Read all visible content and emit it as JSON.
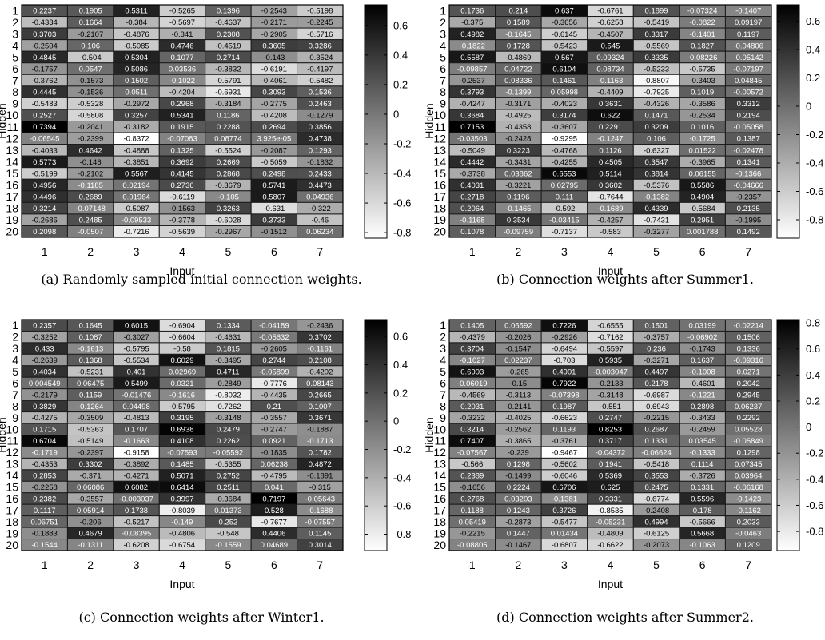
{
  "figure": {
    "x_axis_label": "Input",
    "y_axis_label": "Hidden"
  },
  "chart_data": [
    {
      "type": "heatmap",
      "caption": "(a) Randomly sampled initial connection weights.",
      "xlabel": "Input",
      "ylabel": "Hidden",
      "x_ticks": [
        "1",
        "2",
        "3",
        "4",
        "5",
        "6",
        "7"
      ],
      "y_ticks": [
        "1",
        "2",
        "3",
        "4",
        "5",
        "6",
        "7",
        "8",
        "9",
        "10",
        "11",
        "12",
        "13",
        "14",
        "15",
        "16",
        "17",
        "18",
        "19",
        "20"
      ],
      "clim": [
        -0.8372,
        0.7394
      ],
      "colorbar_ticks": [
        "0.6",
        "0.4",
        "0.2",
        "0",
        "-0.2",
        "-0.4",
        "-0.6",
        "-0.8"
      ],
      "colorbar_tick_values": [
        0.6,
        0.4,
        0.2,
        0,
        -0.2,
        -0.4,
        -0.6,
        -0.8
      ],
      "colormap": "gray, white = low, black = high",
      "cells": [
        [
          "0.2237",
          "0.1905",
          "0.5311",
          "-0.5265",
          "0.1396",
          "-0.2543",
          "-0.5198"
        ],
        [
          "-0.4334",
          "0.1664",
          "-0.384",
          "-0.5697",
          "-0.4637",
          "-0.2171",
          "-0.2245"
        ],
        [
          "0.3703",
          "-0.2107",
          "-0.4876",
          "-0.341",
          "0.2308",
          "-0.2905",
          "-0.5716"
        ],
        [
          "-0.2504",
          "0.106",
          "-0.5085",
          "0.4746",
          "-0.4519",
          "0.3605",
          "0.3286"
        ],
        [
          "0.4845",
          "-0.504",
          "0.5304",
          "0.1077",
          "0.2714",
          "-0.143",
          "-0.3524"
        ],
        [
          "-0.1757",
          "0.0547",
          "0.5086",
          "0.03536",
          "-0.3832",
          "-0.6191",
          "-0.4197"
        ],
        [
          "-0.3762",
          "-0.1573",
          "0.1502",
          "-0.1022",
          "-0.5791",
          "-0.4061",
          "-0.5482"
        ],
        [
          "0.4445",
          "-0.1536",
          "0.0511",
          "-0.4204",
          "-0.6931",
          "0.3093",
          "0.1536"
        ],
        [
          "-0.5483",
          "-0.5328",
          "-0.2972",
          "0.2968",
          "-0.3184",
          "-0.2775",
          "0.2463"
        ],
        [
          "0.2527",
          "-0.5808",
          "0.3257",
          "0.5341",
          "0.1186",
          "-0.4208",
          "-0.1279"
        ],
        [
          "0.7394",
          "-0.2041",
          "-0.3182",
          "0.1915",
          "0.2288",
          "0.2694",
          "0.3856"
        ],
        [
          "-0.06545",
          "-0.2399",
          "-0.8372",
          "-0.07083",
          "0.08774",
          "3.925e-05",
          "0.4738"
        ],
        [
          "-0.4033",
          "0.4642",
          "-0.4888",
          "0.1325",
          "-0.5524",
          "-0.2087",
          "0.1293"
        ],
        [
          "0.5773",
          "-0.146",
          "-0.3851",
          "0.3692",
          "0.2669",
          "-0.5059",
          "-0.1832"
        ],
        [
          "-0.5199",
          "-0.2102",
          "0.5567",
          "0.4145",
          "0.2868",
          "0.2498",
          "0.2433"
        ],
        [
          "0.4956",
          "-0.1185",
          "0.02194",
          "0.2736",
          "-0.3679",
          "0.5741",
          "0.4473"
        ],
        [
          "0.4496",
          "0.2689",
          "0.01964",
          "-0.6119",
          "-0.105",
          "0.5807",
          "0.04936"
        ],
        [
          "0.3214",
          "-0.07148",
          "-0.5087",
          "-0.1563",
          "0.3263",
          "-0.631",
          "-0.322"
        ],
        [
          "-0.2686",
          "0.2485",
          "-0.09533",
          "-0.3778",
          "-0.6028",
          "0.3733",
          "-0.46"
        ],
        [
          "0.2098",
          "-0.0507",
          "-0.7216",
          "-0.5639",
          "-0.2967",
          "-0.1512",
          "0.06234"
        ]
      ]
    },
    {
      "type": "heatmap",
      "caption": "(b) Connection weights after Summer1.",
      "xlabel": "Input",
      "ylabel": "Hidden",
      "x_ticks": [
        "1",
        "2",
        "3",
        "4",
        "5",
        "6",
        "7"
      ],
      "y_ticks": [
        "1",
        "2",
        "3",
        "4",
        "5",
        "6",
        "7",
        "8",
        "9",
        "10",
        "11",
        "12",
        "13",
        "14",
        "15",
        "16",
        "17",
        "18",
        "19",
        "20"
      ],
      "clim": [
        -0.9295,
        0.7153
      ],
      "colorbar_ticks": [
        "0.6",
        "0.4",
        "0.2",
        "0",
        "-0.2",
        "-0.4",
        "-0.6",
        "-0.8"
      ],
      "colorbar_tick_values": [
        0.6,
        0.4,
        0.2,
        0,
        -0.2,
        -0.4,
        -0.6,
        -0.8
      ],
      "colormap": "gray, white = low, black = high",
      "cells": [
        [
          "0.1736",
          "0.214",
          "0.637",
          "-0.6761",
          "0.1899",
          "-0.07324",
          "-0.1407"
        ],
        [
          "-0.375",
          "0.1589",
          "-0.3656",
          "-0.6258",
          "-0.5419",
          "-0.0822",
          "0.09197"
        ],
        [
          "0.4982",
          "-0.1645",
          "-0.6145",
          "-0.4507",
          "0.3317",
          "-0.1401",
          "0.1197"
        ],
        [
          "-0.1822",
          "0.1728",
          "-0.5423",
          "0.545",
          "-0.5569",
          "0.1827",
          "-0.04806"
        ],
        [
          "0.5587",
          "-0.4869",
          "0.567",
          "0.09324",
          "0.3335",
          "-0.08226",
          "-0.05142"
        ],
        [
          "-0.09857",
          "0.04722",
          "0.6104",
          "0.08734",
          "-0.5233",
          "-0.5735",
          "-0.07197"
        ],
        [
          "-0.2537",
          "0.08336",
          "0.1461",
          "-0.1163",
          "-0.8807",
          "-0.3403",
          "0.04845"
        ],
        [
          "0.3793",
          "-0.1399",
          "0.05998",
          "-0.4409",
          "-0.7925",
          "0.1019",
          "-0.00572"
        ],
        [
          "-0.4247",
          "-0.3171",
          "-0.4023",
          "0.3631",
          "-0.4326",
          "-0.3586",
          "0.3312"
        ],
        [
          "0.3684",
          "-0.4925",
          "0.3174",
          "0.622",
          "0.1471",
          "-0.2534",
          "0.2194"
        ],
        [
          "0.7153",
          "-0.4358",
          "-0.3607",
          "0.2291",
          "0.3209",
          "0.1016",
          "-0.05058"
        ],
        [
          "-0.03503",
          "-0.2428",
          "-0.9295",
          "-0.1247",
          "0.106",
          "-0.1725",
          "0.1387"
        ],
        [
          "-0.5049",
          "0.3223",
          "-0.4768",
          "0.1126",
          "-0.6327",
          "0.01522",
          "-0.02478"
        ],
        [
          "0.4442",
          "-0.3431",
          "-0.4255",
          "0.4505",
          "0.3547",
          "-0.3965",
          "0.1341"
        ],
        [
          "-0.3738",
          "0.03862",
          "0.6553",
          "0.5114",
          "0.3814",
          "0.06155",
          "-0.1366"
        ],
        [
          "0.4031",
          "-0.3221",
          "0.02795",
          "0.3602",
          "-0.5376",
          "0.5586",
          "-0.04666"
        ],
        [
          "0.2718",
          "0.1196",
          "0.111",
          "-0.7644",
          "-0.1382",
          "0.4904",
          "-0.2357"
        ],
        [
          "0.2064",
          "-0.1465",
          "-0.592",
          "-0.1689",
          "0.4339",
          "-0.5684",
          "0.2135"
        ],
        [
          "-0.1168",
          "0.3534",
          "-0.03415",
          "-0.4257",
          "-0.7431",
          "0.2951",
          "-0.1995"
        ],
        [
          "0.1078",
          "-0.09759",
          "-0.7137",
          "-0.583",
          "-0.3277",
          "0.001788",
          "0.1492"
        ]
      ]
    },
    {
      "type": "heatmap",
      "caption": "(c) Connection weights after Winter1.",
      "xlabel": "Input",
      "ylabel": "Hidden",
      "x_ticks": [
        "1",
        "2",
        "3",
        "4",
        "5",
        "6",
        "7"
      ],
      "y_ticks": [
        "1",
        "2",
        "3",
        "4",
        "5",
        "6",
        "7",
        "8",
        "9",
        "10",
        "11",
        "12",
        "13",
        "14",
        "15",
        "16",
        "17",
        "18",
        "19",
        "20"
      ],
      "clim": [
        -0.9158,
        0.7197
      ],
      "colorbar_ticks": [
        "0.6",
        "0.4",
        "0.2",
        "0",
        "-0.2",
        "-0.4",
        "-0.6",
        "-0.8"
      ],
      "colorbar_tick_values": [
        0.6,
        0.4,
        0.2,
        0,
        -0.2,
        -0.4,
        -0.6,
        -0.8
      ],
      "colormap": "gray, white = low, black = high",
      "cells": [
        [
          "0.2357",
          "0.1645",
          "0.6015",
          "-0.6904",
          "0.1334",
          "-0.04189",
          "-0.2436"
        ],
        [
          "-0.3252",
          "0.1087",
          "-0.3027",
          "-0.6604",
          "-0.4631",
          "-0.05632",
          "0.3702"
        ],
        [
          "0.433",
          "-0.1613",
          "-0.5795",
          "-0.58",
          "0.1815",
          "-0.2605",
          "-0.1161"
        ],
        [
          "-0.2639",
          "0.1368",
          "-0.5534",
          "0.6029",
          "-0.3495",
          "0.2744",
          "0.2108"
        ],
        [
          "0.4034",
          "-0.5231",
          "0.401",
          "0.02969",
          "0.4711",
          "-0.05899",
          "-0.4202"
        ],
        [
          "0.004549",
          "0.06475",
          "0.5499",
          "0.0321",
          "-0.2849",
          "-0.7776",
          "0.08143"
        ],
        [
          "-0.2179",
          "0.1159",
          "-0.01476",
          "-0.1616",
          "-0.8032",
          "-0.4435",
          "0.2665"
        ],
        [
          "0.3829",
          "-0.1264",
          "0.04498",
          "-0.5795",
          "-0.7262",
          "0.21",
          "0.1007"
        ],
        [
          "-0.4275",
          "-0.3509",
          "-0.4813",
          "0.3195",
          "-0.3148",
          "-0.3557",
          "0.3671"
        ],
        [
          "0.1715",
          "-0.5363",
          "0.1707",
          "0.6938",
          "0.2479",
          "-0.2747",
          "-0.1887"
        ],
        [
          "0.6704",
          "-0.5149",
          "-0.1663",
          "0.4108",
          "0.2262",
          "0.0921",
          "-0.1713"
        ],
        [
          "-0.1719",
          "-0.2397",
          "-0.9158",
          "-0.07593",
          "-0.05592",
          "-0.1835",
          "0.1782"
        ],
        [
          "-0.4353",
          "0.3302",
          "-0.3892",
          "0.1485",
          "-0.5355",
          "0.06238",
          "0.4872"
        ],
        [
          "0.2853",
          "-0.371",
          "-0.4271",
          "0.5071",
          "0.2752",
          "-0.4795",
          "-0.1891"
        ],
        [
          "-0.2258",
          "0.06086",
          "0.6082",
          "0.6414",
          "0.2511",
          "0.041",
          "-0.315"
        ],
        [
          "0.2382",
          "-0.3557",
          "-0.003037",
          "0.3997",
          "-0.3684",
          "0.7197",
          "-0.05643"
        ],
        [
          "0.1117",
          "0.05914",
          "0.1738",
          "-0.8039",
          "0.01373",
          "0.528",
          "-0.1688"
        ],
        [
          "0.06751",
          "-0.206",
          "-0.5217",
          "-0.149",
          "0.252",
          "-0.7677",
          "-0.07557"
        ],
        [
          "-0.1883",
          "0.4679",
          "-0.08395",
          "-0.4806",
          "-0.548",
          "0.4406",
          "0.1145"
        ],
        [
          "-0.1544",
          "-0.1311",
          "-0.6208",
          "-0.6754",
          "-0.1559",
          "0.04689",
          "0.3014"
        ]
      ]
    },
    {
      "type": "heatmap",
      "caption": "(d) Connection weights after Summer2.",
      "xlabel": "Input",
      "ylabel": "Hidden",
      "x_ticks": [
        "1",
        "2",
        "3",
        "4",
        "5",
        "6",
        "7"
      ],
      "y_ticks": [
        "1",
        "2",
        "3",
        "4",
        "5",
        "6",
        "7",
        "8",
        "9",
        "10",
        "11",
        "12",
        "13",
        "14",
        "15",
        "16",
        "17",
        "18",
        "19",
        "20"
      ],
      "clim": [
        -0.9467,
        0.8253
      ],
      "colorbar_ticks": [
        "0.8",
        "0.6",
        "0.4",
        "0.2",
        "0",
        "-0.2",
        "-0.4",
        "-0.6",
        "-0.8"
      ],
      "colorbar_tick_values": [
        0.8,
        0.6,
        0.4,
        0.2,
        0,
        -0.2,
        -0.4,
        -0.6,
        -0.8
      ],
      "colormap": "gray, white = low, black = high",
      "cells": [
        [
          "0.1405",
          "0.06592",
          "0.7226",
          "-0.6555",
          "0.1501",
          "0.03199",
          "-0.02214"
        ],
        [
          "-0.4379",
          "-0.2026",
          "-0.2926",
          "-0.7162",
          "-0.3757",
          "-0.06902",
          "0.1506"
        ],
        [
          "0.3704",
          "-0.1547",
          "-0.6494",
          "-0.5597",
          "0.236",
          "-0.1743",
          "0.1336"
        ],
        [
          "-0.1027",
          "0.02237",
          "-0.703",
          "0.5935",
          "-0.3271",
          "0.1637",
          "-0.09316"
        ],
        [
          "0.6903",
          "-0.265",
          "0.4901",
          "-0.003047",
          "0.4497",
          "-0.1008",
          "0.0271"
        ],
        [
          "-0.06019",
          "-0.15",
          "0.7922",
          "-0.2133",
          "0.2178",
          "-0.4601",
          "0.2042"
        ],
        [
          "-0.4569",
          "-0.3113",
          "-0.07398",
          "-0.3148",
          "-0.6987",
          "-0.1221",
          "0.2945"
        ],
        [
          "0.2031",
          "-0.2141",
          "0.1987",
          "-0.551",
          "-0.6943",
          "0.2898",
          "0.06237"
        ],
        [
          "-0.3232",
          "-0.4025",
          "-0.6623",
          "0.2747",
          "-0.2215",
          "-0.3433",
          "0.2292"
        ],
        [
          "0.3214",
          "-0.2562",
          "0.1193",
          "0.8253",
          "0.2687",
          "-0.2459",
          "0.05528"
        ],
        [
          "0.7407",
          "-0.3865",
          "-0.3761",
          "0.3717",
          "0.1331",
          "0.03545",
          "-0.05849"
        ],
        [
          "-0.07567",
          "-0.239",
          "-0.9467",
          "-0.04372",
          "-0.06624",
          "-0.1333",
          "0.1298"
        ],
        [
          "-0.566",
          "0.1298",
          "-0.5602",
          "0.1941",
          "-0.5418",
          "0.1114",
          "0.07345"
        ],
        [
          "0.2389",
          "-0.1499",
          "-0.6046",
          "0.5369",
          "0.3553",
          "-0.3726",
          "0.03964"
        ],
        [
          "-0.1656",
          "0.2224",
          "0.6706",
          "0.625",
          "0.2475",
          "0.1331",
          "-0.06168"
        ],
        [
          "0.2768",
          "0.03203",
          "-0.1381",
          "0.3331",
          "-0.6774",
          "0.5596",
          "-0.1423"
        ],
        [
          "0.1188",
          "0.1243",
          "0.3726",
          "-0.8535",
          "-0.2408",
          "0.178",
          "-0.1162"
        ],
        [
          "0.05419",
          "-0.2873",
          "-0.5477",
          "-0.05231",
          "0.4994",
          "-0.5666",
          "0.2033"
        ],
        [
          "-0.2215",
          "0.1447",
          "0.01434",
          "-0.4809",
          "-0.6125",
          "0.5668",
          "-0.0463"
        ],
        [
          "-0.08805",
          "-0.1467",
          "-0.6807",
          "-0.6622",
          "-0.2073",
          "-0.1063",
          "0.1209"
        ]
      ]
    }
  ]
}
